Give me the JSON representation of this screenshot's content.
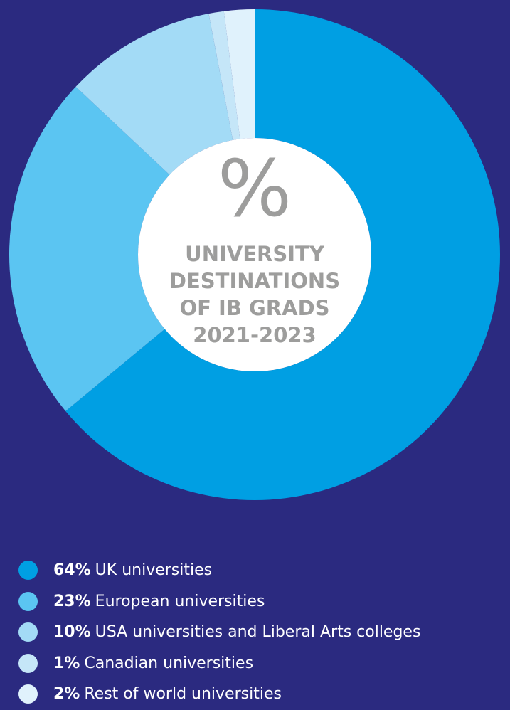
{
  "chart_data": {
    "type": "donut",
    "center_symbol": "%",
    "title": "UNIVERSITY DESTINATIONS OF IB GRADS 2021-2023",
    "categories": [
      "UK universities",
      "European universities",
      "USA universities and Liberal Arts colleges",
      "Canadian universities",
      "Rest of world universities"
    ],
    "values": [
      64,
      23,
      10,
      1,
      2
    ],
    "value_labels": [
      "64%",
      "23%",
      "10%",
      "1%",
      "2%"
    ],
    "colors": [
      "#009fe3",
      "#5bc5f2",
      "#a3dbf6",
      "#c5e6f8",
      "#e0f2fc"
    ]
  }
}
